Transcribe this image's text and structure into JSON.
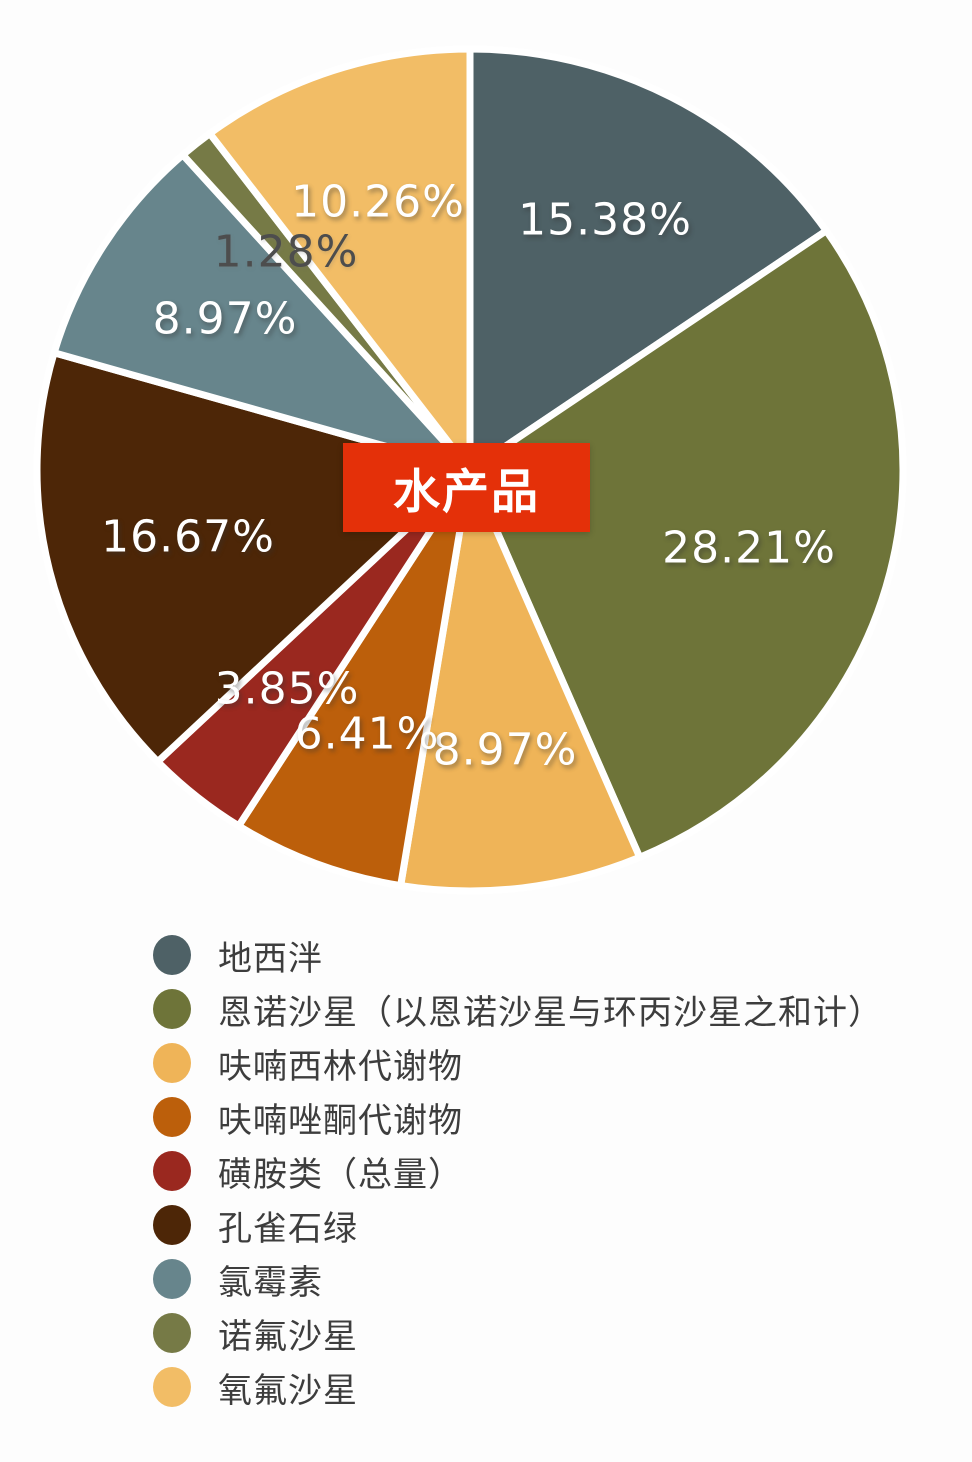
{
  "center_label": {
    "text": "水产品",
    "bg_color": "#e43009",
    "text_color": "#ffffff"
  },
  "chart_data": {
    "type": "pie",
    "title": "水产品",
    "start_angle_deg": 0,
    "direction": "clockwise",
    "legend_position": "bottom-left",
    "label_radius_fraction": 0.67,
    "separator_color": "#ffffff",
    "slices": [
      {
        "label": "地西泮",
        "value": 15.38,
        "display": "15.38%",
        "color": "#4e6166",
        "label_color": "#ffffff"
      },
      {
        "label": "恩诺沙星（以恩诺沙星与环丙沙星之和计）",
        "value": 28.21,
        "display": "28.21%",
        "color": "#6e7439",
        "label_color": "#ffffff"
      },
      {
        "label": "呋喃西林代谢物",
        "value": 8.97,
        "display": "8.97%",
        "color": "#efb458",
        "label_color": "#ffffff"
      },
      {
        "label": "呋喃唑酮代谢物",
        "value": 6.41,
        "display": "6.41%",
        "color": "#bc5f0b",
        "label_color": "#ffffff"
      },
      {
        "label": "磺胺类（总量）",
        "value": 3.85,
        "display": "3.85%",
        "color": "#9a281f",
        "label_color": "#ffffff"
      },
      {
        "label": "孔雀石绿",
        "value": 16.67,
        "display": "16.67%",
        "color": "#4d2607",
        "label_color": "#ffffff"
      },
      {
        "label": "氯霉素",
        "value": 8.97,
        "display": "8.97%",
        "color": "#67858c",
        "label_color": "#ffffff"
      },
      {
        "label": "诺氟沙星",
        "value": 1.28,
        "display": "1.28%",
        "color": "#767a46",
        "label_color": "#4d4d4d"
      },
      {
        "label": "氧氟沙星",
        "value": 10.26,
        "display": "10.26%",
        "color": "#f2bd66",
        "label_color": "#ffffff"
      }
    ]
  }
}
